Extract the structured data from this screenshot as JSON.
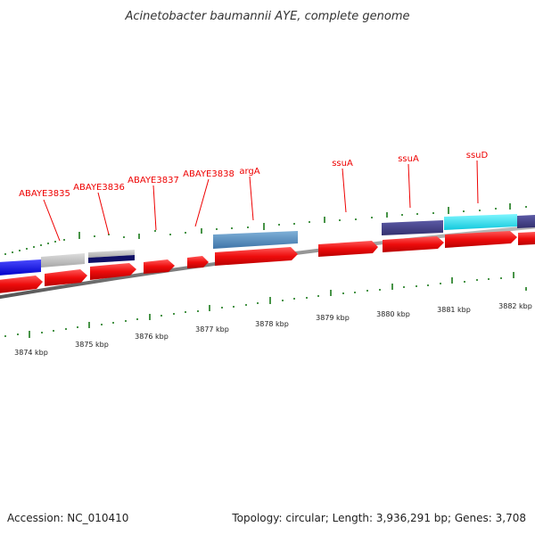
{
  "title": "Acinetobacter baumannii AYE, complete genome",
  "footer": {
    "accession": "Accession: NC_010410",
    "topology": "Topology: circular; Length: 3,936,291 bp; Genes: 3,708"
  },
  "gene_labels": [
    "ABAYE3835",
    "ABAYE3836",
    "ABAYE3837",
    "ABAYE3838",
    "argA",
    "ssuA",
    "ssuA",
    "ssuD"
  ],
  "kbp_labels": [
    "3874 kbp",
    "3875 kbp",
    "3876 kbp",
    "3877 kbp",
    "3878 kbp",
    "3879 kbp",
    "3880 kbp",
    "3881 kbp",
    "3882 kbp"
  ],
  "colors": {
    "cds": "#ee1111",
    "backbone": "#888888",
    "tick": "#1a7a1a",
    "label": "#ee0000"
  }
}
